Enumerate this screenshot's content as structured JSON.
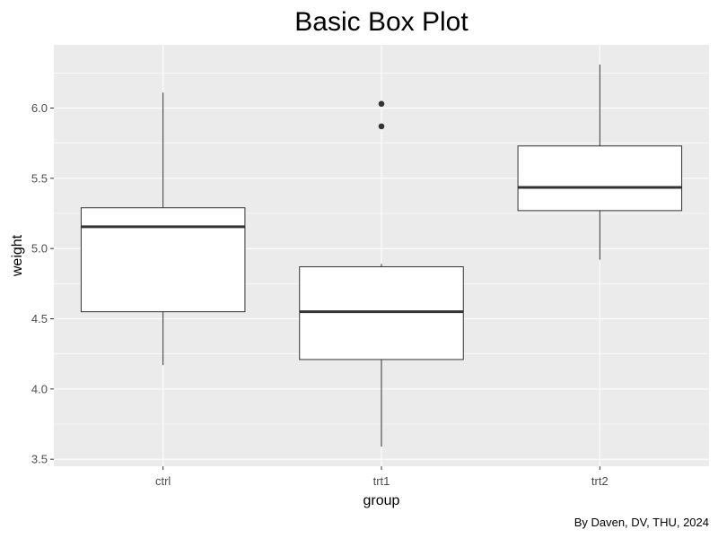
{
  "chart_data": {
    "type": "box",
    "title": "Basic Box Plot",
    "xlabel": "group",
    "ylabel": "weight",
    "caption": "By Daven, DV, THU, 2024",
    "categories": [
      "ctrl",
      "trt1",
      "trt2"
    ],
    "ylim": [
      3.45,
      6.45
    ],
    "yticks": [
      3.5,
      4.0,
      4.5,
      5.0,
      5.5,
      6.0
    ],
    "ytick_labels": [
      "3.5",
      "4.0",
      "4.5",
      "5.0",
      "5.5",
      "6.0"
    ],
    "grid": true,
    "legend": "none",
    "boxes": [
      {
        "name": "ctrl",
        "whisker_low": 4.17,
        "q1": 4.55,
        "median": 5.155,
        "q3": 5.29,
        "whisker_high": 6.11,
        "outliers": []
      },
      {
        "name": "trt1",
        "whisker_low": 3.59,
        "q1": 4.21,
        "median": 4.55,
        "q3": 4.87,
        "whisker_high": 4.89,
        "outliers": [
          5.87,
          6.03
        ]
      },
      {
        "name": "trt2",
        "whisker_low": 4.92,
        "q1": 5.27,
        "median": 5.435,
        "q3": 5.73,
        "whisker_high": 6.31,
        "outliers": []
      }
    ],
    "colors": {
      "panel": "#ebebeb",
      "grid": "#ffffff",
      "box_fill": "#ffffff",
      "box_line": "#333333"
    }
  }
}
